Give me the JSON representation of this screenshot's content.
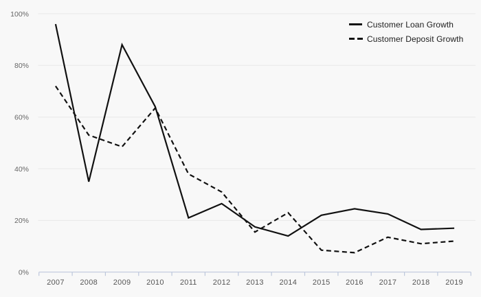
{
  "page": {
    "background": "#f8f8f8"
  },
  "legend": {
    "items": [
      {
        "label": "Customer Loan Growth",
        "style": "solid"
      },
      {
        "label": "Customer Deposit Growth",
        "style": "dashed"
      }
    ]
  },
  "chart_data": {
    "type": "line",
    "title": "",
    "xlabel": "",
    "ylabel": "",
    "categories": [
      "2007",
      "2008",
      "2009",
      "2010",
      "2011",
      "2012",
      "2013",
      "2014",
      "2015",
      "2016",
      "2017",
      "2018",
      "2019"
    ],
    "series": [
      {
        "name": "Customer Loan Growth",
        "style": "solid",
        "values": [
          96,
          35,
          88,
          64,
          21,
          26.5,
          17.5,
          14,
          22,
          24.5,
          22.5,
          16.5,
          17
        ]
      },
      {
        "name": "Customer Deposit Growth",
        "style": "dashed",
        "values": [
          72,
          53,
          48.5,
          63.5,
          38,
          31,
          15.5,
          23,
          8.5,
          7.5,
          13.5,
          11,
          12
        ]
      }
    ],
    "ylim": [
      0,
      100
    ],
    "y_ticks": [
      {
        "v": 0,
        "label": "0%"
      },
      {
        "v": 20,
        "label": "20%"
      },
      {
        "v": 40,
        "label": "40%"
      },
      {
        "v": 60,
        "label": "60%"
      },
      {
        "v": 80,
        "label": "80%"
      },
      {
        "v": 100,
        "label": "100%"
      }
    ],
    "grid": true,
    "legend_position": "top-right",
    "colors": {
      "line": "#111111",
      "grid": "#e8e8e8",
      "axis": "#bdc7dc",
      "y_tick_label": "#666666",
      "x_tick_label": "#555555"
    }
  }
}
